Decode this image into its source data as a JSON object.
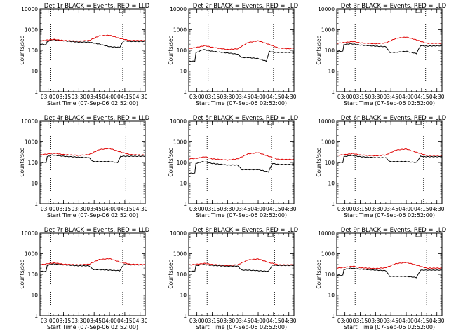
{
  "figure": {
    "ylabel": "Counts/sec",
    "xlabel": "Start Time (07-Sep-06 02:52:00)",
    "colors": {
      "events": "#000000",
      "lld": "#e00000",
      "axes": "#000000"
    },
    "y_ticks": [
      "1",
      "10",
      "100",
      "1000",
      "10000"
    ]
  },
  "chart_data": [
    {
      "type": "line",
      "title": "Det 1r BLACK = Events, RED = LLD",
      "x_ticks": [
        "03:00",
        "03:15",
        "03:30",
        "03:45",
        "04:00",
        "04:15",
        "04:30"
      ],
      "xlim": [
        "02:52",
        "04:35"
      ],
      "ylim": [
        1,
        10000
      ],
      "yscale": "log",
      "vlines": [
        "03:02",
        "04:13"
      ],
      "series": [
        {
          "name": "Events",
          "x": [
            "02:52",
            "02:58",
            "02:59",
            "03:04",
            "03:15",
            "03:30",
            "03:40",
            "03:50",
            "04:00",
            "04:10",
            "04:14",
            "04:20",
            "04:30",
            "04:35"
          ],
          "values": [
            200,
            190,
            260,
            330,
            290,
            250,
            250,
            200,
            150,
            140,
            290,
            270,
            270,
            270
          ]
        },
        {
          "name": "LLD",
          "x": [
            "02:52",
            "03:00",
            "03:06",
            "03:15",
            "03:30",
            "03:40",
            "03:50",
            "04:00",
            "04:10",
            "04:20",
            "04:30",
            "04:35"
          ],
          "values": [
            280,
            320,
            340,
            300,
            280,
            300,
            500,
            540,
            380,
            300,
            300,
            300
          ]
        }
      ]
    },
    {
      "type": "line",
      "title": "Det 2r BLACK = Events, RED = LLD",
      "x_ticks": [
        "03:00",
        "03:15",
        "03:30",
        "03:45",
        "04:00",
        "04:15",
        "04:30"
      ],
      "xlim": [
        "02:52",
        "04:35"
      ],
      "ylim": [
        1,
        10000
      ],
      "yscale": "log",
      "vlines": [
        "03:11",
        "04:15"
      ],
      "series": [
        {
          "name": "Events",
          "x": [
            "02:52",
            "02:58",
            "02:59",
            "03:06",
            "03:15",
            "03:30",
            "03:40",
            "03:44",
            "03:50",
            "04:00",
            "04:08",
            "04:11",
            "04:15",
            "04:20",
            "04:30",
            "04:35"
          ],
          "values": [
            30,
            30,
            75,
            110,
            90,
            75,
            65,
            45,
            45,
            40,
            30,
            90,
            80,
            80,
            80,
            80
          ]
        },
        {
          "name": "LLD",
          "x": [
            "02:52",
            "03:00",
            "03:08",
            "03:15",
            "03:30",
            "03:40",
            "03:50",
            "04:00",
            "04:10",
            "04:20",
            "04:30",
            "04:35"
          ],
          "values": [
            120,
            140,
            170,
            140,
            110,
            120,
            240,
            290,
            200,
            130,
            120,
            130
          ]
        }
      ]
    },
    {
      "type": "line",
      "title": "Det 3r BLACK = Events, RED = LLD",
      "x_ticks": [
        "03:00",
        "03:15",
        "03:30",
        "03:45",
        "04:00",
        "04:15",
        "04:30"
      ],
      "xlim": [
        "02:52",
        "04:35"
      ],
      "ylim": [
        1,
        10000
      ],
      "yscale": "log",
      "vlines": [
        "03:10",
        "04:19"
      ],
      "series": [
        {
          "name": "Events",
          "x": [
            "02:52",
            "02:58",
            "02:59",
            "03:06",
            "03:15",
            "03:30",
            "03:40",
            "03:44",
            "03:50",
            "04:00",
            "04:10",
            "04:14",
            "04:20",
            "04:30",
            "04:35"
          ],
          "values": [
            90,
            90,
            190,
            210,
            180,
            160,
            150,
            80,
            80,
            90,
            70,
            170,
            160,
            165,
            165
          ]
        },
        {
          "name": "LLD",
          "x": [
            "02:52",
            "03:00",
            "03:08",
            "03:15",
            "03:30",
            "03:40",
            "03:50",
            "04:00",
            "04:10",
            "04:20",
            "04:30",
            "04:35"
          ],
          "values": [
            220,
            240,
            270,
            230,
            210,
            230,
            380,
            440,
            320,
            220,
            220,
            220
          ]
        }
      ]
    },
    {
      "type": "line",
      "title": "Det 4r BLACK = Events, RED = LLD",
      "x_ticks": [
        "03:00",
        "03:15",
        "03:30",
        "03:45",
        "04:00",
        "04:15",
        "04:30"
      ],
      "xlim": [
        "02:52",
        "04:35"
      ],
      "ylim": [
        1,
        10000
      ],
      "yscale": "log",
      "vlines": [
        "03:02",
        "04:16"
      ],
      "series": [
        {
          "name": "Events",
          "x": [
            "02:52",
            "02:58",
            "02:59",
            "03:04",
            "03:15",
            "03:30",
            "03:40",
            "03:44",
            "03:50",
            "04:00",
            "04:08",
            "04:11",
            "04:20",
            "04:30",
            "04:35"
          ],
          "values": [
            100,
            100,
            190,
            230,
            200,
            180,
            170,
            110,
            110,
            110,
            100,
            200,
            200,
            200,
            200
          ]
        },
        {
          "name": "LLD",
          "x": [
            "02:52",
            "03:00",
            "03:06",
            "03:15",
            "03:30",
            "03:40",
            "03:50",
            "04:00",
            "04:10",
            "04:20",
            "04:30",
            "04:35"
          ],
          "values": [
            230,
            260,
            280,
            240,
            220,
            240,
            420,
            480,
            330,
            240,
            230,
            230
          ]
        }
      ]
    },
    {
      "type": "line",
      "title": "Det 5r BLACK = Events, RED = LLD",
      "x_ticks": [
        "03:00",
        "03:15",
        "03:30",
        "03:45",
        "04:00",
        "04:15",
        "04:30"
      ],
      "xlim": [
        "02:52",
        "04:35"
      ],
      "ylim": [
        1,
        10000
      ],
      "yscale": "log",
      "vlines": [
        "03:10",
        "04:13"
      ],
      "series": [
        {
          "name": "Events",
          "x": [
            "02:52",
            "02:58",
            "02:59",
            "03:06",
            "03:15",
            "03:30",
            "03:40",
            "03:44",
            "03:50",
            "04:00",
            "04:10",
            "04:14",
            "04:20",
            "04:30",
            "04:35"
          ],
          "values": [
            30,
            30,
            90,
            110,
            90,
            75,
            75,
            45,
            45,
            45,
            35,
            90,
            80,
            80,
            80
          ]
        },
        {
          "name": "LLD",
          "x": [
            "02:52",
            "03:00",
            "03:08",
            "03:15",
            "03:30",
            "03:40",
            "03:50",
            "04:00",
            "04:10",
            "04:20",
            "04:30",
            "04:35"
          ],
          "values": [
            150,
            160,
            190,
            150,
            130,
            150,
            260,
            300,
            200,
            140,
            140,
            140
          ]
        }
      ]
    },
    {
      "type": "line",
      "title": "Det 6r BLACK = Events, RED = LLD",
      "x_ticks": [
        "03:00",
        "03:15",
        "03:30",
        "03:45",
        "04:00",
        "04:15",
        "04:30"
      ],
      "xlim": [
        "02:52",
        "04:35"
      ],
      "ylim": [
        1,
        10000
      ],
      "yscale": "log",
      "vlines": [
        "03:10",
        "04:17"
      ],
      "series": [
        {
          "name": "Events",
          "x": [
            "02:52",
            "02:58",
            "02:59",
            "03:06",
            "03:15",
            "03:30",
            "03:40",
            "03:44",
            "03:50",
            "04:00",
            "04:10",
            "04:14",
            "04:20",
            "04:30",
            "04:35"
          ],
          "values": [
            100,
            100,
            190,
            220,
            190,
            170,
            170,
            110,
            110,
            110,
            100,
            200,
            190,
            190,
            190
          ]
        },
        {
          "name": "LLD",
          "x": [
            "02:52",
            "03:00",
            "03:08",
            "03:15",
            "03:30",
            "03:40",
            "03:50",
            "04:00",
            "04:10",
            "04:20",
            "04:30",
            "04:35"
          ],
          "values": [
            220,
            240,
            270,
            230,
            210,
            230,
            400,
            450,
            310,
            220,
            220,
            220
          ]
        }
      ]
    },
    {
      "type": "line",
      "title": "Det 7r BLACK = Events, RED = LLD",
      "x_ticks": [
        "03:00",
        "03:15",
        "03:30",
        "03:45",
        "04:00",
        "04:15",
        "04:30"
      ],
      "xlim": [
        "02:52",
        "04:35"
      ],
      "ylim": [
        1,
        10000
      ],
      "yscale": "log",
      "vlines": [
        "03:02",
        "04:13"
      ],
      "series": [
        {
          "name": "Events",
          "x": [
            "02:52",
            "02:58",
            "02:59",
            "03:04",
            "03:15",
            "03:30",
            "03:40",
            "03:44",
            "03:50",
            "04:00",
            "04:10",
            "04:14",
            "04:20",
            "04:30",
            "04:35"
          ],
          "values": [
            140,
            140,
            270,
            320,
            290,
            260,
            260,
            170,
            170,
            160,
            150,
            300,
            290,
            290,
            290
          ]
        },
        {
          "name": "LLD",
          "x": [
            "02:52",
            "03:00",
            "03:06",
            "03:15",
            "03:30",
            "03:40",
            "03:50",
            "04:00",
            "04:10",
            "04:20",
            "04:30",
            "04:35"
          ],
          "values": [
            290,
            330,
            360,
            310,
            290,
            310,
            520,
            580,
            400,
            310,
            300,
            300
          ]
        }
      ]
    },
    {
      "type": "line",
      "title": "Det 8r BLACK = Events, RED = LLD",
      "x_ticks": [
        "03:00",
        "03:15",
        "03:30",
        "03:45",
        "04:00",
        "04:15",
        "04:30"
      ],
      "xlim": [
        "02:52",
        "04:35"
      ],
      "ylim": [
        1,
        10000
      ],
      "yscale": "log",
      "vlines": [
        "03:10",
        "04:16"
      ],
      "series": [
        {
          "name": "Events",
          "x": [
            "02:52",
            "02:58",
            "02:59",
            "03:06",
            "03:15",
            "03:30",
            "03:40",
            "03:44",
            "03:50",
            "04:00",
            "04:10",
            "04:14",
            "04:20",
            "04:30",
            "04:35"
          ],
          "values": [
            140,
            140,
            260,
            300,
            270,
            250,
            250,
            160,
            160,
            150,
            140,
            280,
            270,
            270,
            270
          ]
        },
        {
          "name": "LLD",
          "x": [
            "02:52",
            "03:00",
            "03:08",
            "03:15",
            "03:30",
            "03:40",
            "03:50",
            "04:00",
            "04:10",
            "04:20",
            "04:30",
            "04:35"
          ],
          "values": [
            280,
            310,
            340,
            300,
            270,
            290,
            500,
            560,
            380,
            290,
            290,
            290
          ]
        }
      ]
    },
    {
      "type": "line",
      "title": "Det 9r BLACK = Events, RED = LLD",
      "x_ticks": [
        "03:00",
        "03:15",
        "03:30",
        "03:45",
        "04:00",
        "04:15",
        "04:30"
      ],
      "xlim": [
        "02:52",
        "04:35"
      ],
      "ylim": [
        1,
        10000
      ],
      "yscale": "log",
      "vlines": [
        "03:10",
        "04:20"
      ],
      "series": [
        {
          "name": "Events",
          "x": [
            "02:52",
            "02:58",
            "02:59",
            "03:06",
            "03:15",
            "03:30",
            "03:40",
            "03:44",
            "03:50",
            "04:00",
            "04:10",
            "04:14",
            "04:20",
            "04:30",
            "04:35"
          ],
          "values": [
            90,
            90,
            170,
            200,
            180,
            160,
            150,
            80,
            80,
            80,
            70,
            160,
            160,
            160,
            160
          ]
        },
        {
          "name": "LLD",
          "x": [
            "02:52",
            "03:00",
            "03:08",
            "03:15",
            "03:30",
            "03:40",
            "03:50",
            "04:00",
            "04:10",
            "04:20",
            "04:30",
            "04:35"
          ],
          "values": [
            200,
            220,
            250,
            210,
            190,
            210,
            330,
            380,
            280,
            200,
            200,
            200
          ]
        }
      ]
    }
  ]
}
